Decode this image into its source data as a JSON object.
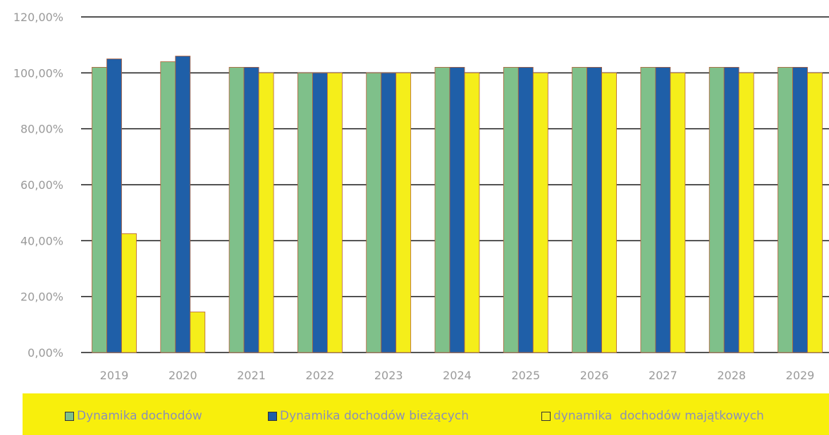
{
  "chart_data": {
    "type": "bar",
    "categories": [
      "2019",
      "2020",
      "2021",
      "2022",
      "2023",
      "2024",
      "2025",
      "2026",
      "2027",
      "2028",
      "2029"
    ],
    "series": [
      {
        "name": "Dynamika dochodów",
        "color": "#7fc08a",
        "values": [
          102,
          104,
          102,
          100,
          100,
          102,
          102,
          102,
          102,
          102,
          102
        ]
      },
      {
        "name": "Dynamika dochodów bieżących",
        "color": "#1f5fa8",
        "values": [
          105,
          106,
          102,
          100,
          100,
          102,
          102,
          102,
          102,
          102,
          102
        ]
      },
      {
        "name": "dynamika  dochodów majątkowych",
        "color": "#f5ee1a",
        "values": [
          42.5,
          14.5,
          100,
          100,
          100,
          100,
          100,
          100,
          100,
          100,
          100
        ]
      }
    ],
    "y_ticks": [
      "0,00%",
      "20,00%",
      "40,00%",
      "60,00%",
      "80,00%",
      "100,00%",
      "120,00%"
    ],
    "ylim": [
      0,
      120
    ],
    "grid": true,
    "legend_position": "bottom",
    "legend_background": "#f8ef0c"
  }
}
